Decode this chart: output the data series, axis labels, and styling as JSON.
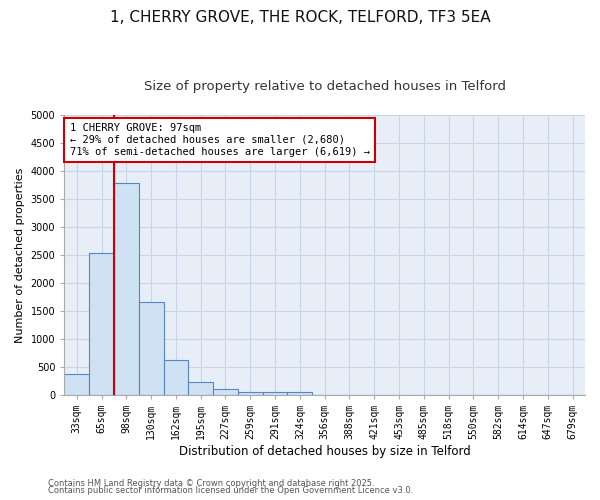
{
  "title1": "1, CHERRY GROVE, THE ROCK, TELFORD, TF3 5EA",
  "title2": "Size of property relative to detached houses in Telford",
  "xlabel": "Distribution of detached houses by size in Telford",
  "ylabel": "Number of detached properties",
  "categories": [
    "33sqm",
    "65sqm",
    "98sqm",
    "130sqm",
    "162sqm",
    "195sqm",
    "227sqm",
    "259sqm",
    "291sqm",
    "324sqm",
    "356sqm",
    "388sqm",
    "421sqm",
    "453sqm",
    "485sqm",
    "518sqm",
    "550sqm",
    "582sqm",
    "614sqm",
    "647sqm",
    "679sqm"
  ],
  "values": [
    375,
    2530,
    3780,
    1650,
    620,
    230,
    100,
    50,
    50,
    50,
    0,
    0,
    0,
    0,
    0,
    0,
    0,
    0,
    0,
    0,
    0
  ],
  "bar_color": "#cfe2f3",
  "bar_edge_color": "#5585c5",
  "vline_color": "#cc0000",
  "annotation_line1": "1 CHERRY GROVE: 97sqm",
  "annotation_line2": "← 29% of detached houses are smaller (2,680)",
  "annotation_line3": "71% of semi-detached houses are larger (6,619) →",
  "annotation_box_color": "#cc0000",
  "ylim": [
    0,
    5000
  ],
  "yticks": [
    0,
    500,
    1000,
    1500,
    2000,
    2500,
    3000,
    3500,
    4000,
    4500,
    5000
  ],
  "footnote1": "Contains HM Land Registry data © Crown copyright and database right 2025.",
  "footnote2": "Contains public sector information licensed under the Open Government Licence v3.0.",
  "fig_bg_color": "#ffffff",
  "plot_bg_color": "#e8eef8",
  "grid_color": "#c8d4e8",
  "title1_fontsize": 11,
  "title2_fontsize": 9.5,
  "tick_fontsize": 7,
  "ylabel_fontsize": 8,
  "xlabel_fontsize": 8.5,
  "footnote_fontsize": 6,
  "annotation_fontsize": 7.5
}
